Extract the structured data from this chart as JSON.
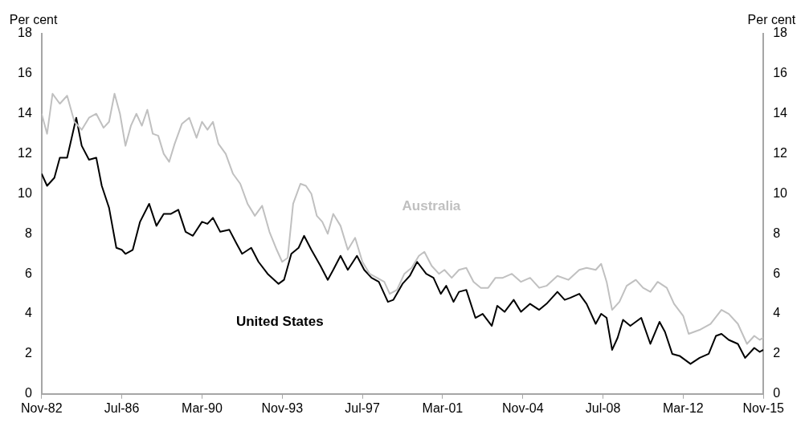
{
  "chart_data": {
    "type": "line",
    "ylabel": "Per cent",
    "y2label": "Per cent",
    "xlim": [
      "1982-11",
      "2015-11"
    ],
    "xticks": [
      {
        "value": "1982-11",
        "label": "Nov-82"
      },
      {
        "value": "1986-07",
        "label": "Jul-86"
      },
      {
        "value": "1990-03",
        "label": "Mar-90"
      },
      {
        "value": "1993-11",
        "label": "Nov-93"
      },
      {
        "value": "1997-07",
        "label": "Jul-97"
      },
      {
        "value": "2001-03",
        "label": "Mar-01"
      },
      {
        "value": "2004-11",
        "label": "Nov-04"
      },
      {
        "value": "2008-07",
        "label": "Jul-08"
      },
      {
        "value": "2012-03",
        "label": "Mar-12"
      },
      {
        "value": "2015-11",
        "label": "Nov-15"
      }
    ],
    "ylim": [
      0,
      18
    ],
    "yticks": [
      0,
      2,
      4,
      6,
      8,
      10,
      12,
      14,
      16,
      18
    ],
    "y2lim": [
      0,
      18
    ],
    "y2ticks": [
      0,
      2,
      4,
      6,
      8,
      10,
      12,
      14,
      16,
      18
    ],
    "legend": false,
    "marker": "none",
    "line_style": "solid",
    "series": [
      {
        "name": "Australia",
        "color": "#c0c0c0",
        "x": [
          "1982-11",
          "1983-02",
          "1983-05",
          "1983-09",
          "1984-01",
          "1984-05",
          "1984-09",
          "1985-01",
          "1985-05",
          "1985-09",
          "1985-12",
          "1986-03",
          "1986-06",
          "1986-09",
          "1986-12",
          "1987-03",
          "1987-06",
          "1987-09",
          "1987-12",
          "1988-03",
          "1988-06",
          "1988-09",
          "1988-12",
          "1989-04",
          "1989-08",
          "1989-12",
          "1990-03",
          "1990-06",
          "1990-09",
          "1990-12",
          "1991-04",
          "1991-08",
          "1991-12",
          "1992-04",
          "1992-08",
          "1992-12",
          "1993-04",
          "1993-08",
          "1993-11",
          "1994-02",
          "1994-05",
          "1994-09",
          "1994-12",
          "1995-03",
          "1995-06",
          "1995-09",
          "1995-12",
          "1996-03",
          "1996-07",
          "1996-11",
          "1997-03",
          "1997-07",
          "1997-11",
          "1998-03",
          "1998-07",
          "1998-10",
          "1999-02",
          "1999-06",
          "1999-10",
          "2000-02",
          "2000-05",
          "2000-09",
          "2001-01",
          "2001-04",
          "2001-08",
          "2001-12",
          "2002-04",
          "2002-08",
          "2002-12",
          "2003-04",
          "2003-08",
          "2003-12",
          "2004-05",
          "2004-10",
          "2005-03",
          "2005-08",
          "2005-12",
          "2006-06",
          "2006-12",
          "2007-06",
          "2007-10",
          "2008-03",
          "2008-06",
          "2008-09",
          "2008-12",
          "2009-04",
          "2009-08",
          "2010-01",
          "2010-05",
          "2010-09",
          "2011-01",
          "2011-06",
          "2011-10",
          "2012-03",
          "2012-06",
          "2012-12",
          "2013-06",
          "2013-12",
          "2014-04",
          "2014-09",
          "2015-02",
          "2015-06",
          "2015-09",
          "2015-11"
        ],
        "values": [
          14.0,
          13.0,
          15.0,
          14.5,
          14.9,
          13.6,
          13.2,
          13.8,
          14.0,
          13.3,
          13.6,
          15.0,
          14.0,
          12.4,
          13.4,
          14.0,
          13.4,
          14.2,
          13.0,
          12.9,
          12.0,
          11.6,
          12.5,
          13.5,
          13.8,
          12.8,
          13.6,
          13.2,
          13.6,
          12.5,
          12.0,
          11.0,
          10.5,
          9.5,
          8.9,
          9.4,
          8.1,
          7.2,
          6.6,
          6.8,
          9.5,
          10.5,
          10.4,
          10.0,
          8.9,
          8.6,
          8.0,
          9.0,
          8.4,
          7.2,
          7.8,
          6.6,
          6.0,
          5.8,
          5.6,
          5.0,
          5.2,
          6.0,
          6.3,
          6.9,
          7.1,
          6.4,
          6.0,
          6.2,
          5.8,
          6.2,
          6.3,
          5.6,
          5.3,
          5.3,
          5.8,
          5.8,
          6.0,
          5.6,
          5.8,
          5.3,
          5.4,
          5.9,
          5.7,
          6.2,
          6.3,
          6.2,
          6.5,
          5.6,
          4.2,
          4.6,
          5.4,
          5.7,
          5.3,
          5.1,
          5.6,
          5.3,
          4.5,
          3.9,
          3.0,
          3.2,
          3.5,
          4.2,
          4.0,
          3.5,
          2.5,
          2.9,
          2.7,
          2.8
        ]
      },
      {
        "name": "United States",
        "color": "#000000",
        "x": [
          "1982-11",
          "1983-02",
          "1983-06",
          "1983-09",
          "1984-01",
          "1984-06",
          "1984-09",
          "1985-01",
          "1985-05",
          "1985-08",
          "1985-12",
          "1986-04",
          "1986-07",
          "1986-09",
          "1987-01",
          "1987-05",
          "1987-10",
          "1988-02",
          "1988-06",
          "1988-10",
          "1989-02",
          "1989-06",
          "1989-10",
          "1990-03",
          "1990-06",
          "1990-09",
          "1991-01",
          "1991-06",
          "1991-10",
          "1992-01",
          "1992-06",
          "1992-10",
          "1993-03",
          "1993-09",
          "1993-12",
          "1994-04",
          "1994-08",
          "1994-11",
          "1995-03",
          "1995-08",
          "1995-12",
          "1996-03",
          "1996-07",
          "1996-11",
          "1997-04",
          "1997-08",
          "1997-12",
          "1998-04",
          "1998-09",
          "1998-12",
          "1999-05",
          "1999-09",
          "2000-01",
          "2000-06",
          "2000-10",
          "2001-02",
          "2001-05",
          "2001-09",
          "2001-12",
          "2002-04",
          "2002-09",
          "2003-01",
          "2003-06",
          "2003-09",
          "2004-01",
          "2004-06",
          "2004-10",
          "2005-03",
          "2005-08",
          "2005-12",
          "2006-06",
          "2006-10",
          "2007-01",
          "2007-06",
          "2007-10",
          "2008-03",
          "2008-06",
          "2008-09",
          "2008-12",
          "2009-03",
          "2009-06",
          "2009-10",
          "2010-04",
          "2010-09",
          "2011-02",
          "2011-05",
          "2011-09",
          "2012-01",
          "2012-07",
          "2012-12",
          "2013-05",
          "2013-09",
          "2013-12",
          "2014-04",
          "2014-09",
          "2015-01",
          "2015-06",
          "2015-09",
          "2015-11"
        ],
        "values": [
          11.0,
          10.4,
          10.8,
          11.8,
          11.8,
          13.8,
          12.4,
          11.7,
          11.8,
          10.4,
          9.3,
          7.3,
          7.2,
          7.0,
          7.2,
          8.6,
          9.5,
          8.4,
          9.0,
          9.0,
          9.2,
          8.1,
          7.9,
          8.6,
          8.5,
          8.8,
          8.1,
          8.2,
          7.5,
          7.0,
          7.3,
          6.6,
          6.0,
          5.5,
          5.7,
          7.0,
          7.3,
          7.9,
          7.2,
          6.4,
          5.7,
          6.2,
          6.9,
          6.2,
          6.9,
          6.2,
          5.8,
          5.6,
          4.6,
          4.7,
          5.5,
          5.9,
          6.6,
          6.0,
          5.8,
          5.0,
          5.4,
          4.6,
          5.1,
          5.2,
          3.8,
          4.0,
          3.4,
          4.4,
          4.1,
          4.7,
          4.1,
          4.5,
          4.2,
          4.5,
          5.1,
          4.7,
          4.8,
          5.0,
          4.5,
          3.5,
          4.0,
          3.8,
          2.2,
          2.8,
          3.7,
          3.4,
          3.8,
          2.5,
          3.6,
          3.1,
          2.0,
          1.9,
          1.5,
          1.8,
          2.0,
          2.9,
          3.0,
          2.7,
          2.5,
          1.8,
          2.3,
          2.1,
          2.2
        ]
      }
    ]
  }
}
